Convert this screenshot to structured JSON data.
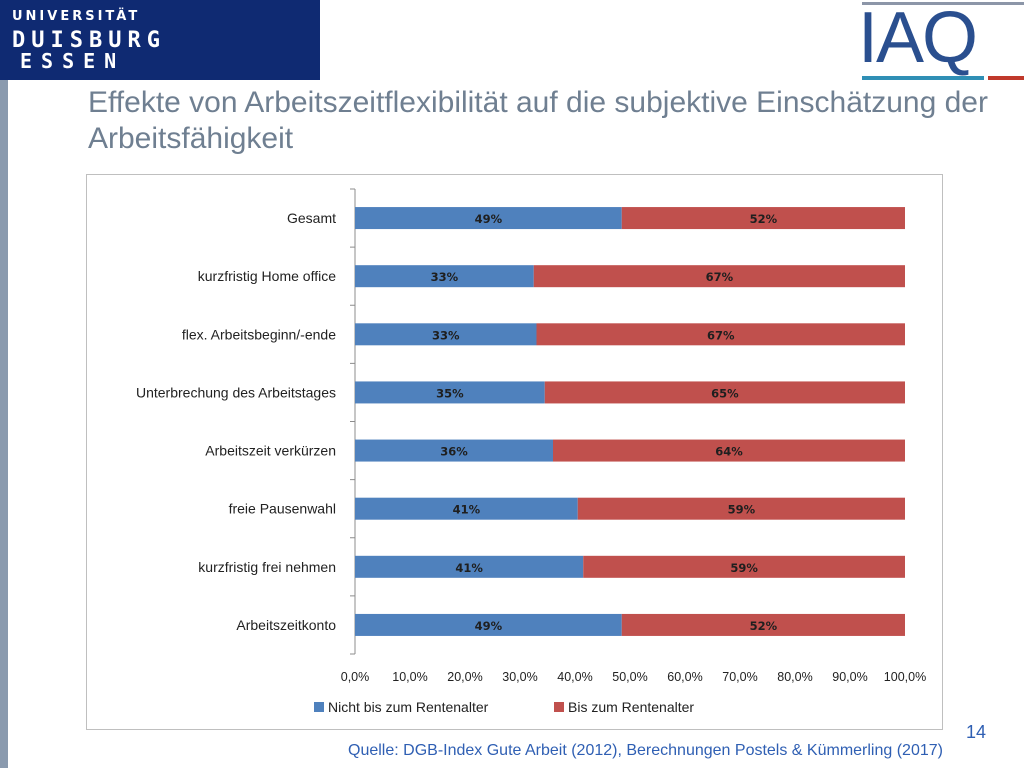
{
  "header": {
    "university_line1": "UNIVERSITÄT",
    "university_line2": "DUISBURG",
    "university_line3": "ESSEN",
    "iaq_logo_text": "IAQ"
  },
  "slide": {
    "title": "Effekte von Arbeitszeitflexibilität auf die subjektive Einschätzung der Arbeitsfähigkeit",
    "source": "Quelle: DGB-Index Gute Arbeit (2012), Berechnungen Postels & Kümmerling (2017)",
    "page_number": "14"
  },
  "colors": {
    "series_blue": "#4f81bd",
    "series_red": "#c0504d",
    "university_blue": "#0f2a72",
    "iaq_blue": "#2a4f8f",
    "iaq_red": "#c0392b",
    "title_gray": "#6f7f91",
    "source_blue": "#2f5fb3"
  },
  "chart_data": {
    "type": "bar",
    "orientation": "horizontal",
    "stacked": true,
    "categories": [
      "Gesamt",
      "kurzfristig Home office",
      "flex. Arbeitsbeginn/-ende",
      "Unterbrechung des Arbeitstages",
      "Arbeitszeit verkürzen",
      "freie Pausenwahl",
      "kurzfristig frei nehmen",
      "Arbeitszeitkonto"
    ],
    "series": [
      {
        "name": "Nicht bis zum Rentenalter",
        "color": "#4f81bd",
        "values": [
          48.5,
          32.5,
          33.0,
          34.5,
          36.0,
          40.5,
          41.5,
          48.5
        ],
        "labels": [
          "49%",
          "33%",
          "33%",
          "35%",
          "36%",
          "41%",
          "41%",
          "49%"
        ]
      },
      {
        "name": "Bis zum Rentenalter",
        "color": "#c0504d",
        "values": [
          51.5,
          67.5,
          67.0,
          65.5,
          64.0,
          59.5,
          58.5,
          51.5
        ],
        "labels": [
          "52%",
          "67%",
          "67%",
          "65%",
          "64%",
          "59%",
          "59%",
          "52%"
        ]
      }
    ],
    "x_ticks": [
      "0,0%",
      "10,0%",
      "20,0%",
      "30,0%",
      "40,0%",
      "50,0%",
      "60,0%",
      "70,0%",
      "80,0%",
      "90,0%",
      "100,0%"
    ],
    "xlim": [
      0,
      100
    ],
    "grid": false,
    "legend_position": "bottom"
  }
}
